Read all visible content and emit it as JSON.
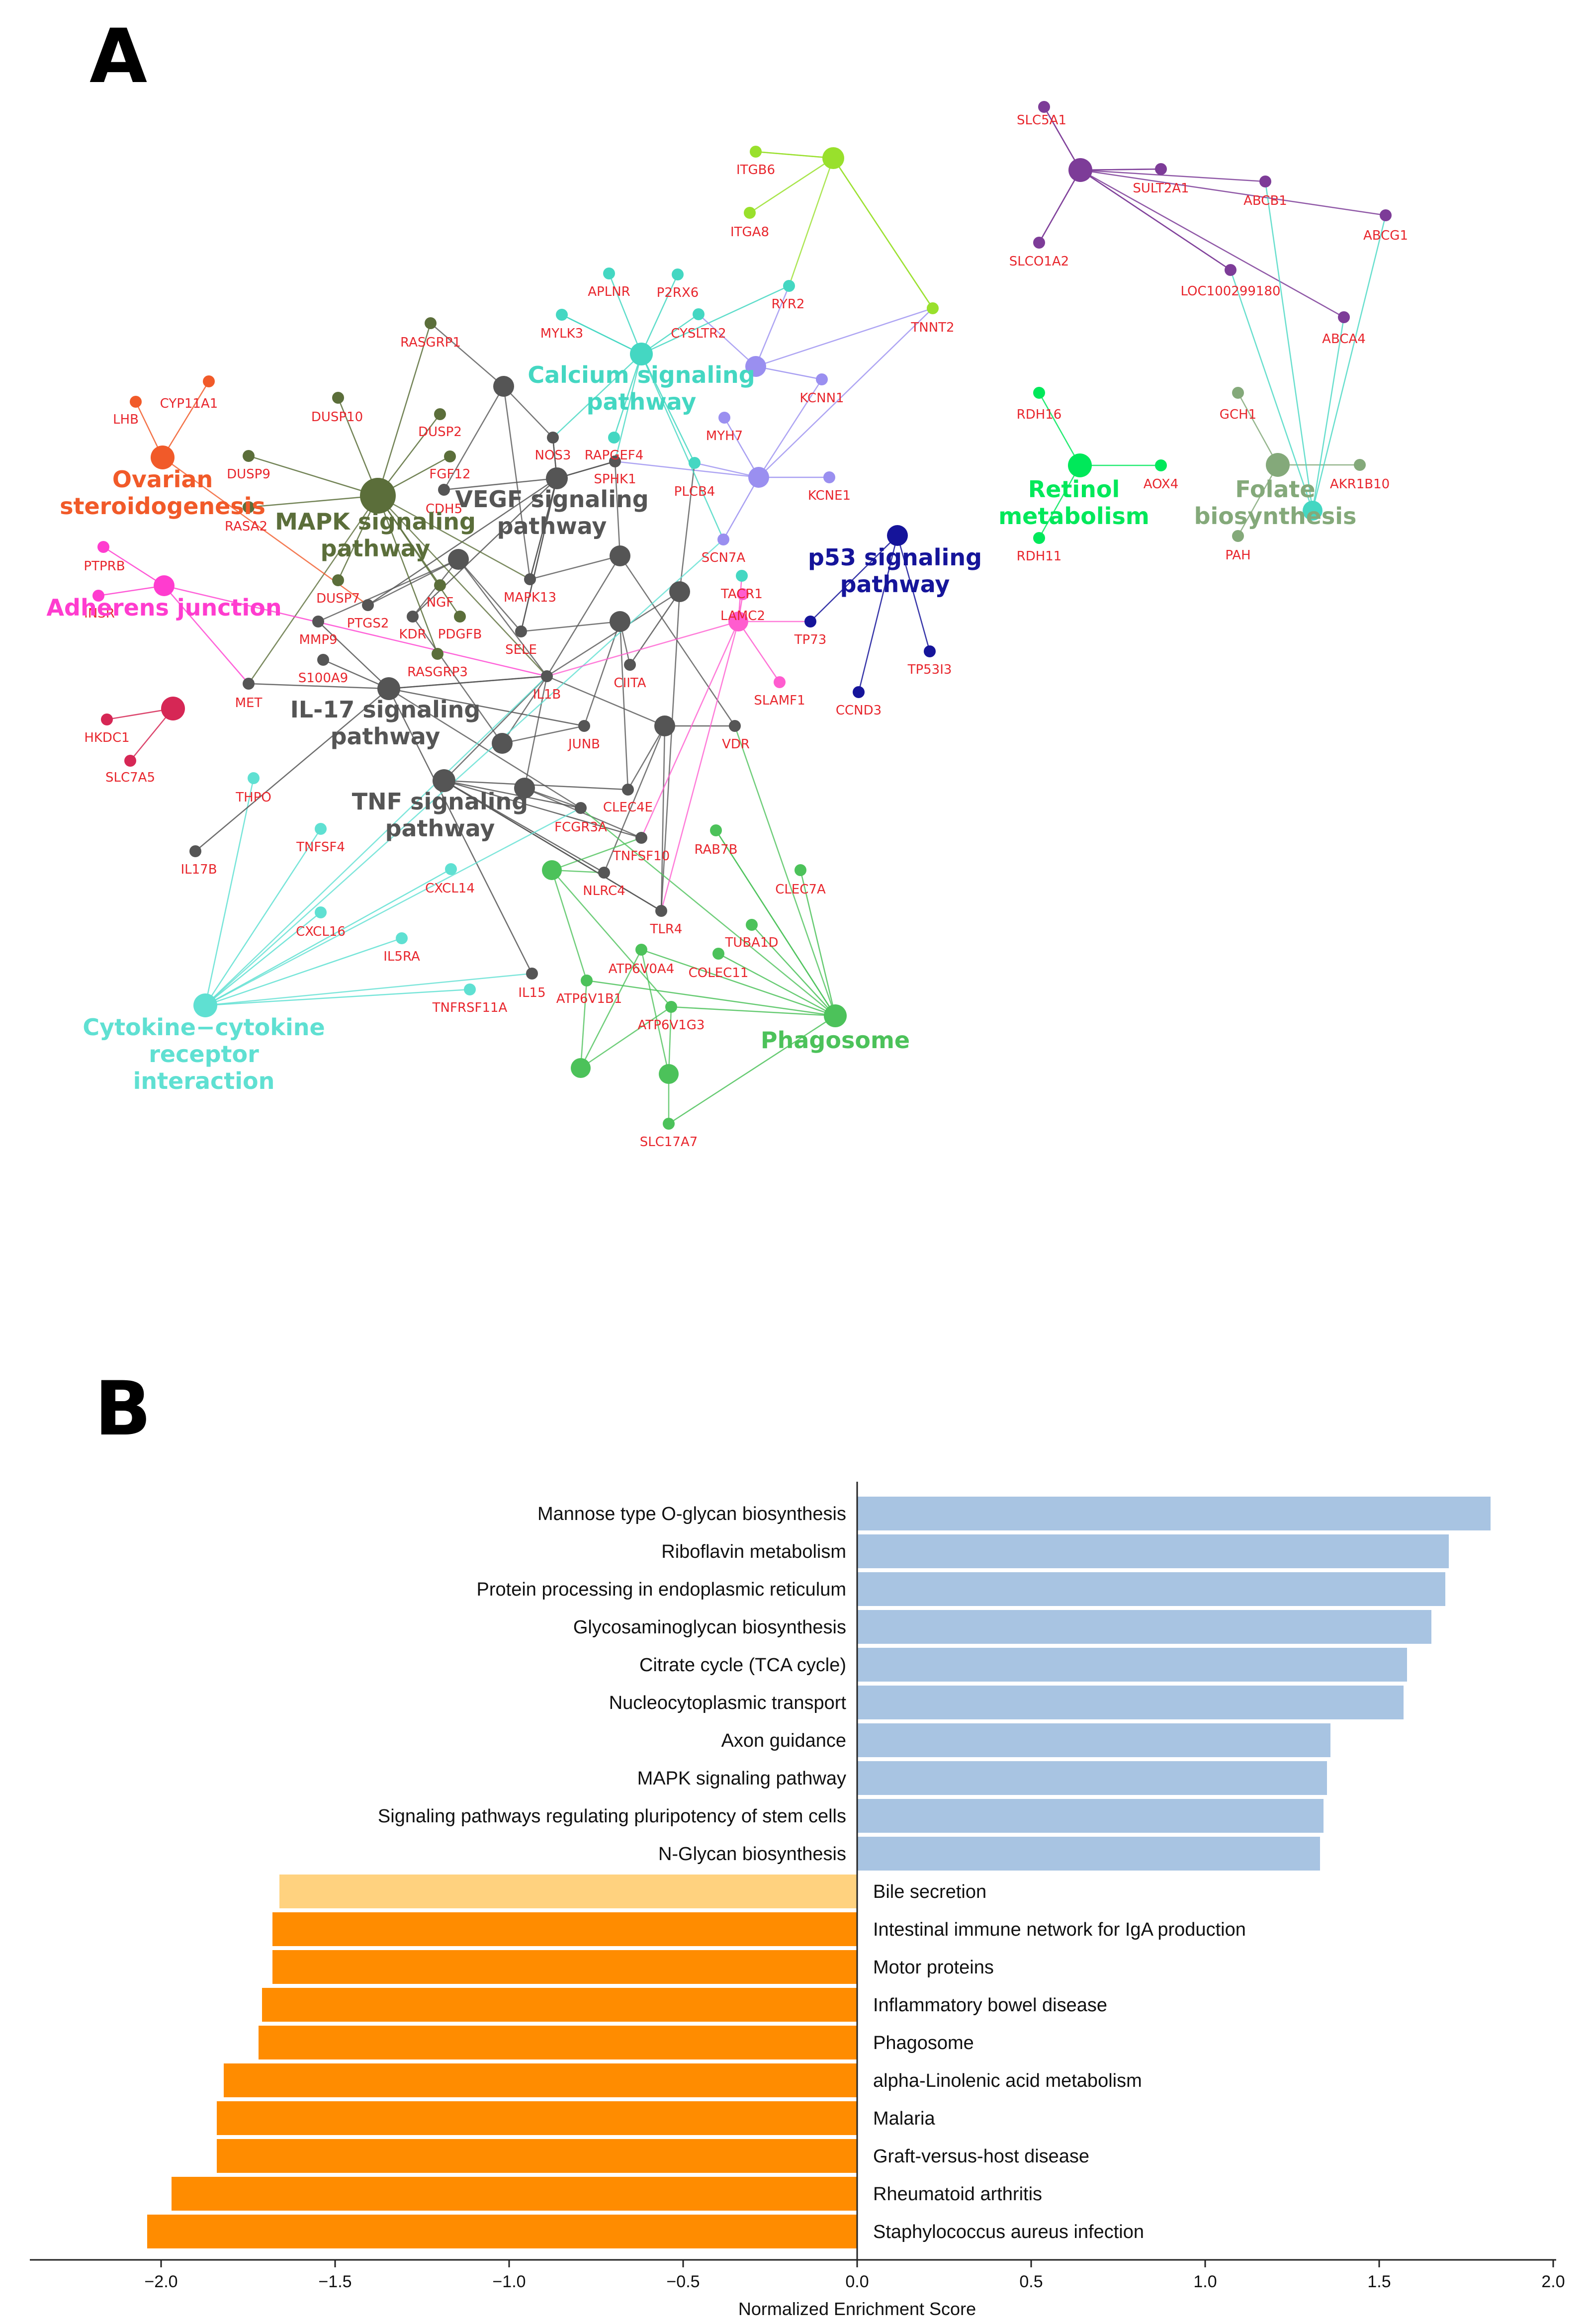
{
  "colors": {
    "gene_label": "#e8262d",
    "positive_bar": "#a8c4e2",
    "negative_bar": "#ff8c00",
    "negative_bar_light": "#ffd27f",
    "edge_dark": "#555555"
  },
  "panel_a": {
    "letter": "A",
    "pathway_nodes": [
      {
        "id": "p_ovarian",
        "name": "Ovarian steroidogenesis",
        "lines": [
          "Ovarian",
          "steroidogenesis"
        ],
        "color": "#f15a29"
      },
      {
        "id": "p_adherens",
        "name": "Adherens junction",
        "lines": [
          "Adherens junction"
        ],
        "color": "#ff3ccf"
      },
      {
        "id": "p_hkdc",
        "name": "unlabeled pathway (HKDC1 / SLC7A5)",
        "lines": [],
        "color": "#d62755"
      },
      {
        "id": "p_mapk",
        "name": "MAPK signaling pathway",
        "lines": [
          "MAPK signaling",
          "pathway"
        ],
        "color": "#5b6e3a"
      },
      {
        "id": "p_vegf",
        "name": "VEGF signaling pathway",
        "lines": [
          "VEGF signaling",
          "pathway"
        ],
        "color": "#555555"
      },
      {
        "id": "p_il17",
        "name": "IL-17 signaling pathway",
        "lines": [
          "IL-17 signaling",
          "pathway"
        ],
        "color": "#555555"
      },
      {
        "id": "p_tnf",
        "name": "TNF signaling pathway",
        "lines": [
          "TNF signaling",
          "pathway"
        ],
        "color": "#555555"
      },
      {
        "id": "p_calcium",
        "name": "Calcium signaling pathway",
        "lines": [
          "Calcium signaling",
          "pathway"
        ],
        "color": "#44d7c2"
      },
      {
        "id": "p_cytokine",
        "name": "Cytokine-cytokine receptor interaction",
        "lines": [
          "Cytokine−cytokine",
          "receptor",
          "interaction"
        ],
        "color": "#5fe0d2"
      },
      {
        "id": "p_phagosome",
        "name": "Phagosome",
        "lines": [
          "Phagosome"
        ],
        "color": "#4cc25a"
      },
      {
        "id": "p_p53",
        "name": "p53 signaling pathway",
        "lines": [
          "p53 signaling",
          "pathway"
        ],
        "color": "#15149a"
      },
      {
        "id": "p_retinol",
        "name": "Retinol metabolism",
        "lines": [
          "Retinol",
          "metabolism"
        ],
        "color": "#00e85a"
      },
      {
        "id": "p_folate",
        "name": "Folate biosynthesis",
        "lines": [
          "Folate",
          "biosynthesis"
        ],
        "color": "#84a97a"
      },
      {
        "id": "p_purple",
        "name": "unlabeled pathway (ABC transporters)",
        "lines": [],
        "color": "#7d3c98"
      },
      {
        "id": "p_itgb",
        "name": "unlabeled pathway (ITGB6 / ITGA8)",
        "lines": [],
        "color": "#99e02c"
      },
      {
        "id": "p_lila1",
        "name": "unlabeled pathway (KCNN1 / KCNE1)",
        "lines": [],
        "color": "#9a8ff0"
      },
      {
        "id": "p_lila2",
        "name": "unlabeled pathway (MYH7 / TNNT2)",
        "lines": [],
        "color": "#9a8ff0"
      },
      {
        "id": "p_lamc2",
        "name": "unlabeled pathway (LAMC2)",
        "lines": [],
        "color": "#ff5ccf"
      },
      {
        "id": "p_gray1",
        "name": "unlabeled pathway",
        "lines": [],
        "color": "#555555"
      },
      {
        "id": "p_gray2",
        "name": "unlabeled pathway",
        "lines": [],
        "color": "#555555"
      },
      {
        "id": "p_gray3",
        "name": "unlabeled pathway",
        "lines": [],
        "color": "#555555"
      },
      {
        "id": "p_gray4",
        "name": "unlabeled pathway",
        "lines": [],
        "color": "#555555"
      },
      {
        "id": "p_gray5",
        "name": "unlabeled pathway",
        "lines": [],
        "color": "#555555"
      },
      {
        "id": "p_gray6",
        "name": "unlabeled pathway",
        "lines": [],
        "color": "#555555"
      },
      {
        "id": "p_gray7",
        "name": "unlabeled pathway",
        "lines": [],
        "color": "#555555"
      },
      {
        "id": "p_gray8",
        "name": "unlabeled pathway",
        "lines": [],
        "color": "#555555"
      },
      {
        "id": "p_green2",
        "name": "unlabeled pathway",
        "lines": [],
        "color": "#4cc25a"
      },
      {
        "id": "p_green3",
        "name": "unlabeled pathway",
        "lines": [],
        "color": "#4cc25a"
      },
      {
        "id": "p_green4",
        "name": "unlabeled pathway",
        "lines": [],
        "color": "#4cc25a"
      },
      {
        "id": "p_cal2",
        "name": "unlabeled pathway",
        "lines": [],
        "color": "#44d7c2"
      }
    ],
    "genes": [
      {
        "label": "CYP11A1",
        "color": "#f15a29"
      },
      {
        "label": "LHB",
        "color": "#f15a29"
      },
      {
        "label": "PTPRB",
        "color": "#ff3ccf"
      },
      {
        "label": "INSR",
        "color": "#ff3ccf"
      },
      {
        "label": "HKDC1",
        "color": "#d62755"
      },
      {
        "label": "SLC7A5",
        "color": "#d62755"
      },
      {
        "label": "DUSP9",
        "color": "#5b6e3a"
      },
      {
        "label": "DUSP10",
        "color": "#5b6e3a"
      },
      {
        "label": "DUSP2",
        "color": "#5b6e3a"
      },
      {
        "label": "FGF12",
        "color": "#5b6e3a"
      },
      {
        "label": "CDH5",
        "color": "#555555"
      },
      {
        "label": "RASA2",
        "color": "#5b6e3a"
      },
      {
        "label": "DUSP7",
        "color": "#5b6e3a"
      },
      {
        "label": "RASGRP1",
        "color": "#5b6e3a"
      },
      {
        "label": "NGF",
        "color": "#5b6e3a"
      },
      {
        "label": "PTGS2",
        "color": "#555555"
      },
      {
        "label": "KDR",
        "color": "#555555"
      },
      {
        "label": "PDGFB",
        "color": "#5b6e3a"
      },
      {
        "label": "MMP9",
        "color": "#555555"
      },
      {
        "label": "S100A9",
        "color": "#555555"
      },
      {
        "label": "RASGRP3",
        "color": "#5b6e3a"
      },
      {
        "label": "MET",
        "color": "#555555"
      },
      {
        "label": "THPO",
        "color": "#5fe0d2"
      },
      {
        "label": "IL17B",
        "color": "#555555"
      },
      {
        "label": "TNFSF4",
        "color": "#5fe0d2"
      },
      {
        "label": "CXCL16",
        "color": "#5fe0d2"
      },
      {
        "label": "IL5RA",
        "color": "#5fe0d2"
      },
      {
        "label": "CXCL14",
        "color": "#5fe0d2"
      },
      {
        "label": "TNFRSF11A",
        "color": "#5fe0d2"
      },
      {
        "label": "IL15",
        "color": "#555555"
      },
      {
        "label": "APLNR",
        "color": "#44d7c2"
      },
      {
        "label": "P2RX6",
        "color": "#44d7c2"
      },
      {
        "label": "MYLK3",
        "color": "#44d7c2"
      },
      {
        "label": "CYSLTR2",
        "color": "#44d7c2"
      },
      {
        "label": "RYR2",
        "color": "#44d7c2"
      },
      {
        "label": "NOS3",
        "color": "#555555"
      },
      {
        "label": "RAPGEF4",
        "color": "#44d7c2"
      },
      {
        "label": "SPHK1",
        "color": "#555555"
      },
      {
        "label": "PLCB4",
        "color": "#44d7c2"
      },
      {
        "label": "MYH7",
        "color": "#9a8ff0"
      },
      {
        "label": "KCNN1",
        "color": "#9a8ff0"
      },
      {
        "label": "KCNE1",
        "color": "#9a8ff0"
      },
      {
        "label": "SCN7A",
        "color": "#9a8ff0"
      },
      {
        "label": "TNNT2",
        "color": "#99e02c"
      },
      {
        "label": "ITGB6",
        "color": "#99e02c"
      },
      {
        "label": "ITGA8",
        "color": "#99e02c"
      },
      {
        "label": "MAPK13",
        "color": "#555555"
      },
      {
        "label": "SELE",
        "color": "#555555"
      },
      {
        "label": "IL1B",
        "color": "#555555"
      },
      {
        "label": "CIITA",
        "color": "#555555"
      },
      {
        "label": "TACR1",
        "color": "#44d7c2"
      },
      {
        "label": "LAMC2",
        "color": "#ff5ccf"
      },
      {
        "label": "TP73",
        "color": "#15149a"
      },
      {
        "label": "TP53I3",
        "color": "#15149a"
      },
      {
        "label": "CCND3",
        "color": "#15149a"
      },
      {
        "label": "SLAMF1",
        "color": "#ff5ccf"
      },
      {
        "label": "VDR",
        "color": "#555555"
      },
      {
        "label": "JUNB",
        "color": "#555555"
      },
      {
        "label": "CLEC4E",
        "color": "#555555"
      },
      {
        "label": "FCGR3A",
        "color": "#555555"
      },
      {
        "label": "TNFSF10",
        "color": "#555555"
      },
      {
        "label": "RAB7B",
        "color": "#4cc25a"
      },
      {
        "label": "CLEC7A",
        "color": "#4cc25a"
      },
      {
        "label": "NLRC4",
        "color": "#555555"
      },
      {
        "label": "TLR4",
        "color": "#555555"
      },
      {
        "label": "TUBA1D",
        "color": "#4cc25a"
      },
      {
        "label": "COLEC11",
        "color": "#4cc25a"
      },
      {
        "label": "ATP6V0A4",
        "color": "#4cc25a"
      },
      {
        "label": "ATP6V1B1",
        "color": "#4cc25a"
      },
      {
        "label": "ATP6V1G3",
        "color": "#4cc25a"
      },
      {
        "label": "SLC17A7",
        "color": "#4cc25a"
      },
      {
        "label": "SLC5A1",
        "color": "#7d3c98"
      },
      {
        "label": "SULT2A1",
        "color": "#7d3c98"
      },
      {
        "label": "ABCB1",
        "color": "#7d3c98"
      },
      {
        "label": "ABCG1",
        "color": "#7d3c98"
      },
      {
        "label": "SLCO1A2",
        "color": "#7d3c98"
      },
      {
        "label": "LOC100299180",
        "color": "#7d3c98"
      },
      {
        "label": "ABCA4",
        "color": "#7d3c98"
      },
      {
        "label": "RDH16",
        "color": "#00e85a"
      },
      {
        "label": "AOX4",
        "color": "#00e85a"
      },
      {
        "label": "RDH11",
        "color": "#00e85a"
      },
      {
        "label": "GCH1",
        "color": "#84a97a"
      },
      {
        "label": "AKR1B10",
        "color": "#84a97a"
      },
      {
        "label": "PAH",
        "color": "#84a97a"
      }
    ]
  },
  "chart_data": {
    "type": "bar",
    "orientation": "horizontal",
    "panel_letter": "B",
    "title": "",
    "xlabel": "Normalized Enrichment Score",
    "ylabel": "",
    "xlim": [
      -2.2,
      2.0
    ],
    "xticks": [
      "−2.0",
      "−1.5",
      "−1.0",
      "−0.5",
      "0.0",
      "0.5",
      "1.0",
      "1.5",
      "2.0"
    ],
    "grid": false,
    "categories": [
      "Mannose type O-glycan biosynthesis",
      "Riboflavin metabolism",
      "Protein processing in endoplasmic reticulum",
      "Glycosaminoglycan biosynthesis",
      "Citrate cycle (TCA cycle)",
      "Nucleocytoplasmic transport",
      "Axon guidance",
      "MAPK signaling pathway",
      "Signaling pathways regulating pluripotency of stem cells",
      "N-Glycan biosynthesis",
      "Bile secretion",
      "Intestinal immune network for IgA production",
      "Motor proteins",
      "Inflammatory bowel disease",
      "Phagosome",
      "alpha-Linolenic acid metabolism",
      "Malaria",
      "Graft-versus-host disease",
      "Rheumatoid arthritis",
      "Staphylococcus aureus infection"
    ],
    "values": [
      1.82,
      1.7,
      1.69,
      1.65,
      1.58,
      1.57,
      1.36,
      1.35,
      1.34,
      1.33,
      -1.66,
      -1.68,
      -1.68,
      -1.71,
      -1.72,
      -1.82,
      -1.84,
      -1.84,
      -1.97,
      -2.04
    ]
  }
}
